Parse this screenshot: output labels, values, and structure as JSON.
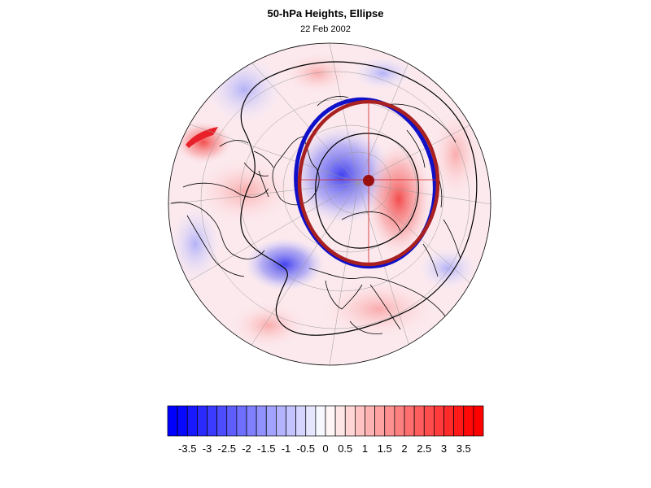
{
  "title": "50-hPa Heights, Ellipse",
  "subtitle": "22 Feb 2002",
  "colorbar": {
    "tick_labels": [
      "-3.5",
      "-3",
      "-2.5",
      "-2",
      "-1.5",
      "-1",
      "-0.5",
      "0",
      "0.5",
      "1",
      "1.5",
      "2",
      "2.5",
      "3",
      "3.5"
    ],
    "range": [
      -4,
      4
    ],
    "low_color": "#0000ff",
    "mid_color": "#ffffff",
    "high_color": "#ff0000"
  },
  "colors": {
    "observed_vortex_edge": "#1010c8",
    "fitted_ellipse": "#a82020",
    "ellipse_center": "#9a1010",
    "coastline": "#000000",
    "graticule": "#888888"
  }
}
